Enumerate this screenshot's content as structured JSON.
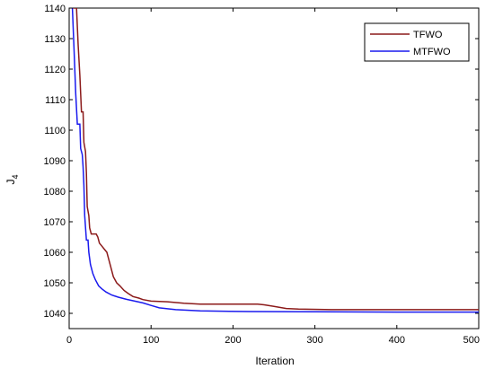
{
  "chart_data": {
    "type": "line",
    "title": "",
    "xlabel": "Iteration",
    "ylabel": "J",
    "ylabel_sub": "4",
    "xlim": [
      0,
      500
    ],
    "ylim": [
      1035,
      1140
    ],
    "xticks": [
      "0",
      "100",
      "200",
      "300",
      "400",
      "500"
    ],
    "yticks": [
      "1040",
      "1050",
      "1060",
      "1070",
      "1080",
      "1090",
      "1100",
      "1110",
      "1120",
      "1130",
      "1140"
    ],
    "grid": false,
    "legend_position": "top-right",
    "series": [
      {
        "name": "TFWO",
        "color": "#8b1a1a",
        "points": [
          [
            4,
            1140
          ],
          [
            9,
            1140
          ],
          [
            11,
            1128
          ],
          [
            13,
            1118
          ],
          [
            15,
            1106
          ],
          [
            17,
            1106
          ],
          [
            18,
            1096
          ],
          [
            20,
            1093
          ],
          [
            21,
            1086
          ],
          [
            22,
            1075
          ],
          [
            24,
            1072
          ],
          [
            25,
            1068
          ],
          [
            27,
            1066
          ],
          [
            33,
            1066
          ],
          [
            35,
            1065
          ],
          [
            37,
            1063
          ],
          [
            40,
            1062
          ],
          [
            43,
            1061
          ],
          [
            46,
            1060
          ],
          [
            48,
            1058
          ],
          [
            50,
            1056
          ],
          [
            52,
            1054
          ],
          [
            54,
            1052
          ],
          [
            58,
            1050
          ],
          [
            62,
            1049
          ],
          [
            67,
            1047.5
          ],
          [
            72,
            1046.5
          ],
          [
            78,
            1045.5
          ],
          [
            85,
            1045
          ],
          [
            90,
            1044.5
          ],
          [
            100,
            1044
          ],
          [
            120,
            1043.8
          ],
          [
            140,
            1043.3
          ],
          [
            160,
            1043
          ],
          [
            230,
            1043
          ],
          [
            238,
            1042.8
          ],
          [
            250,
            1042.3
          ],
          [
            265,
            1041.6
          ],
          [
            280,
            1041.4
          ],
          [
            320,
            1041.2
          ],
          [
            400,
            1041.2
          ],
          [
            500,
            1041.2
          ]
        ]
      },
      {
        "name": "MTFWO",
        "color": "#1a1aee",
        "points": [
          [
            4,
            1140
          ],
          [
            6,
            1126
          ],
          [
            8,
            1112
          ],
          [
            10,
            1102
          ],
          [
            13,
            1102
          ],
          [
            14,
            1094
          ],
          [
            16,
            1092
          ],
          [
            17,
            1088
          ],
          [
            18,
            1082
          ],
          [
            19,
            1072
          ],
          [
            21,
            1064
          ],
          [
            23,
            1064
          ],
          [
            24,
            1060
          ],
          [
            26,
            1056
          ],
          [
            29,
            1053
          ],
          [
            32,
            1051
          ],
          [
            36,
            1049
          ],
          [
            40,
            1048
          ],
          [
            45,
            1047
          ],
          [
            52,
            1046
          ],
          [
            60,
            1045.3
          ],
          [
            70,
            1044.6
          ],
          [
            80,
            1044
          ],
          [
            90,
            1043.4
          ],
          [
            100,
            1042.6
          ],
          [
            110,
            1041.8
          ],
          [
            130,
            1041.2
          ],
          [
            160,
            1040.8
          ],
          [
            220,
            1040.6
          ],
          [
            300,
            1040.5
          ],
          [
            400,
            1040.4
          ],
          [
            500,
            1040.4
          ]
        ]
      }
    ]
  }
}
